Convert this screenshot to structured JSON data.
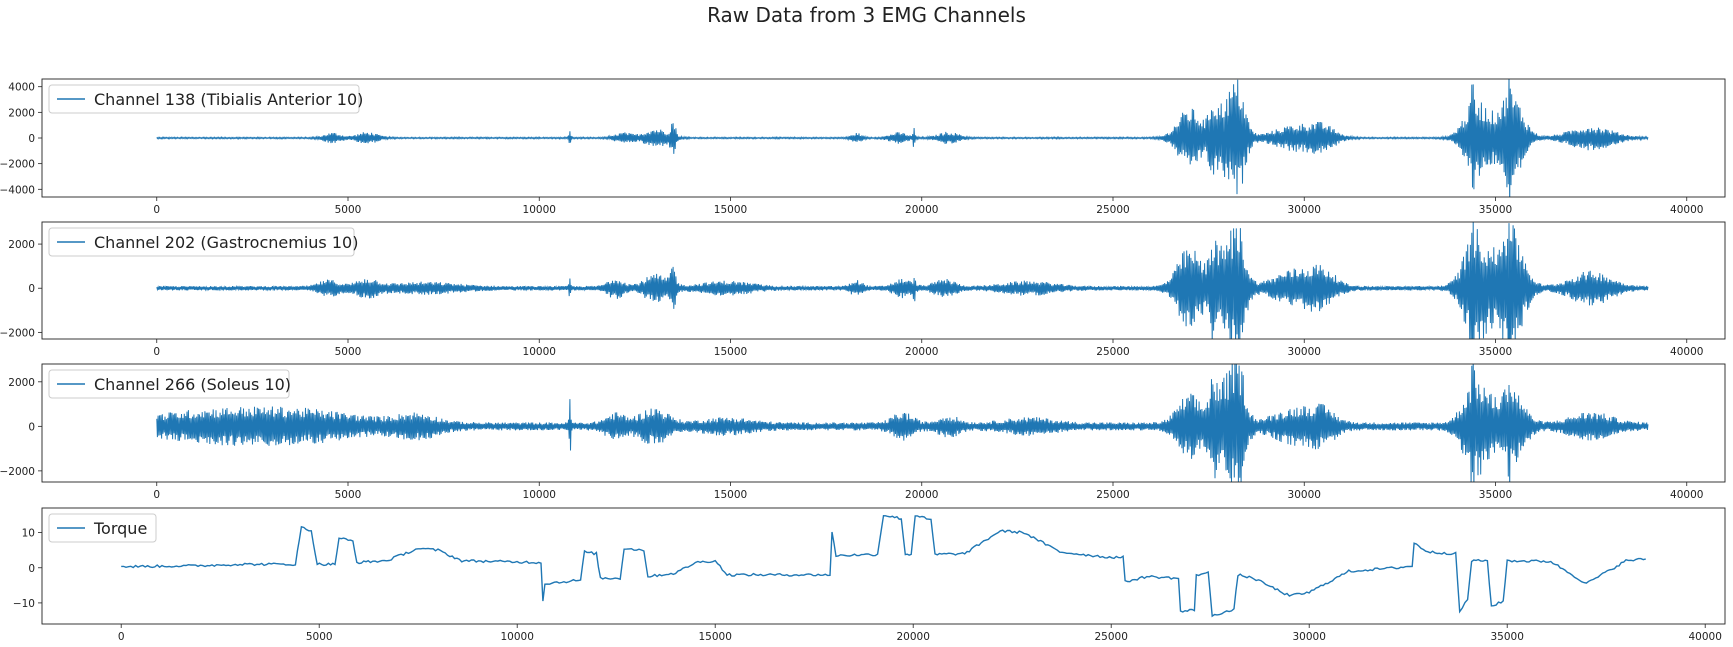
{
  "figure": {
    "title": "Raw Data from 3 EMG Channels"
  },
  "colors": {
    "line": "#1f77b4",
    "axes": "#222222"
  },
  "chart_data": [
    {
      "type": "line",
      "series": [
        {
          "name": "Channel 138 (Tibialis Anterior 10)"
        }
      ],
      "legend": "top-left",
      "xlim": [
        -3000,
        41000
      ],
      "ylim": [
        -4600,
        4600
      ],
      "xticks": [
        0,
        5000,
        10000,
        15000,
        20000,
        25000,
        30000,
        35000,
        40000
      ],
      "yticks": [
        -4000,
        -2000,
        0,
        2000,
        4000
      ],
      "n_samples": 39000,
      "baseline": 60,
      "bursts": [
        [
          4600,
          200,
          380
        ],
        [
          5500,
          250,
          420
        ],
        [
          10800,
          25,
          500
        ],
        [
          12200,
          200,
          380
        ],
        [
          13050,
          300,
          700
        ],
        [
          13500,
          60,
          1200
        ],
        [
          18300,
          120,
          350
        ],
        [
          19400,
          220,
          400
        ],
        [
          19800,
          20,
          900
        ],
        [
          20700,
          250,
          450
        ],
        [
          27000,
          300,
          2300
        ],
        [
          27600,
          80,
          1600
        ],
        [
          28000,
          300,
          3200
        ],
        [
          28300,
          150,
          2500
        ],
        [
          29800,
          550,
          1000
        ],
        [
          30500,
          300,
          700
        ],
        [
          34500,
          300,
          3000
        ],
        [
          34400,
          20,
          4200
        ],
        [
          35400,
          300,
          3500
        ],
        [
          35350,
          25,
          4100
        ],
        [
          37500,
          550,
          900
        ]
      ]
    },
    {
      "type": "line",
      "series": [
        {
          "name": "Channel 202 (Gastrocnemius 10)"
        }
      ],
      "legend": "top-left",
      "xlim": [
        -3000,
        41000
      ],
      "ylim": [
        -2300,
        3000
      ],
      "xticks": [
        0,
        5000,
        10000,
        15000,
        20000,
        25000,
        30000,
        35000,
        40000
      ],
      "yticks": [
        -2000,
        0,
        2000
      ],
      "n_samples": 39000,
      "baseline": 100,
      "bursts": [
        [
          4500,
          250,
          300
        ],
        [
          5500,
          280,
          350
        ],
        [
          7000,
          800,
          200
        ],
        [
          10800,
          20,
          500
        ],
        [
          12000,
          200,
          400
        ],
        [
          13050,
          300,
          550
        ],
        [
          13500,
          60,
          900
        ],
        [
          14900,
          600,
          250
        ],
        [
          18300,
          150,
          280
        ],
        [
          19500,
          220,
          350
        ],
        [
          19800,
          20,
          750
        ],
        [
          20600,
          250,
          350
        ],
        [
          22800,
          600,
          250
        ],
        [
          27000,
          300,
          1800
        ],
        [
          27600,
          80,
          1400
        ],
        [
          28000,
          300,
          2100
        ],
        [
          28300,
          150,
          1600
        ],
        [
          29800,
          550,
          800
        ],
        [
          30500,
          300,
          600
        ],
        [
          34500,
          300,
          2600
        ],
        [
          34400,
          25,
          2500
        ],
        [
          35400,
          300,
          2800
        ],
        [
          35350,
          25,
          2900
        ],
        [
          37500,
          500,
          700
        ]
      ]
    },
    {
      "type": "line",
      "series": [
        {
          "name": "Channel 266 (Soleus 10)"
        }
      ],
      "legend": "top-left",
      "xlim": [
        -3000,
        41000
      ],
      "ylim": [
        -2500,
        2800
      ],
      "xticks": [
        0,
        5000,
        10000,
        15000,
        20000,
        25000,
        30000,
        35000,
        40000
      ],
      "yticks": [
        -2000,
        0,
        2000
      ],
      "n_samples": 39000,
      "baseline": 180,
      "bursts": [
        [
          1200,
          1500,
          500
        ],
        [
          3800,
          1500,
          550
        ],
        [
          6800,
          500,
          400
        ],
        [
          10800,
          20,
          1400
        ],
        [
          12000,
          250,
          450
        ],
        [
          13000,
          350,
          700
        ],
        [
          14900,
          600,
          250
        ],
        [
          19500,
          250,
          500
        ],
        [
          20700,
          250,
          350
        ],
        [
          22800,
          600,
          250
        ],
        [
          27000,
          300,
          1300
        ],
        [
          27600,
          80,
          1300
        ],
        [
          28000,
          300,
          2100
        ],
        [
          28300,
          150,
          1700
        ],
        [
          29800,
          550,
          700
        ],
        [
          30500,
          300,
          500
        ],
        [
          34500,
          300,
          2100
        ],
        [
          34400,
          25,
          2300
        ],
        [
          35400,
          300,
          1700
        ],
        [
          35350,
          25,
          1300
        ],
        [
          37500,
          500,
          500
        ]
      ]
    },
    {
      "type": "line",
      "series": [
        {
          "name": "Torque"
        }
      ],
      "legend": "top-left",
      "xlim": [
        -2000,
        40500
      ],
      "ylim": [
        -16,
        17
      ],
      "xticks": [
        0,
        5000,
        10000,
        15000,
        20000,
        25000,
        30000,
        35000,
        40000
      ],
      "yticks": [
        -10,
        0,
        10
      ],
      "points": [
        [
          0,
          0.3
        ],
        [
          2000,
          0.6
        ],
        [
          3000,
          1
        ],
        [
          4400,
          1
        ],
        [
          4550,
          11.5
        ],
        [
          4800,
          10.5
        ],
        [
          4950,
          1
        ],
        [
          5400,
          1
        ],
        [
          5500,
          8.5
        ],
        [
          5850,
          7.5
        ],
        [
          5950,
          1.5
        ],
        [
          6700,
          2
        ],
        [
          7500,
          5.5
        ],
        [
          8000,
          5
        ],
        [
          8600,
          2
        ],
        [
          10600,
          1.5
        ],
        [
          10650,
          -9.5
        ],
        [
          10700,
          -4.5
        ],
        [
          11600,
          -3.5
        ],
        [
          11700,
          4.5
        ],
        [
          12000,
          4
        ],
        [
          12100,
          -3
        ],
        [
          12600,
          -3
        ],
        [
          12700,
          5.5
        ],
        [
          13200,
          5
        ],
        [
          13300,
          -2.5
        ],
        [
          14000,
          -1.5
        ],
        [
          14500,
          1.5
        ],
        [
          15000,
          2
        ],
        [
          15300,
          -2
        ],
        [
          17900,
          -2
        ],
        [
          17950,
          10
        ],
        [
          18050,
          3.5
        ],
        [
          19100,
          3.8
        ],
        [
          19250,
          15
        ],
        [
          19700,
          14
        ],
        [
          19800,
          3.8
        ],
        [
          19950,
          3.8
        ],
        [
          20050,
          15
        ],
        [
          20450,
          13.5
        ],
        [
          20550,
          3.8
        ],
        [
          21300,
          4
        ],
        [
          22200,
          10.5
        ],
        [
          22800,
          10
        ],
        [
          23700,
          4.5
        ],
        [
          24900,
          3
        ],
        [
          25300,
          3
        ],
        [
          25350,
          -4
        ],
        [
          25900,
          -2.5
        ],
        [
          26700,
          -3
        ],
        [
          26750,
          -12.5
        ],
        [
          27100,
          -12
        ],
        [
          27150,
          -2
        ],
        [
          27450,
          -1.5
        ],
        [
          27550,
          -13.5
        ],
        [
          28100,
          -12
        ],
        [
          28200,
          -2
        ],
        [
          28600,
          -3
        ],
        [
          29500,
          -8
        ],
        [
          30000,
          -7
        ],
        [
          31000,
          -1
        ],
        [
          32200,
          0
        ],
        [
          32600,
          0.5
        ],
        [
          32650,
          7
        ],
        [
          33000,
          4.5
        ],
        [
          33700,
          4
        ],
        [
          33800,
          -12.5
        ],
        [
          34000,
          -9
        ],
        [
          34100,
          2
        ],
        [
          34500,
          2
        ],
        [
          34600,
          -11
        ],
        [
          34900,
          -9.5
        ],
        [
          35000,
          2
        ],
        [
          36100,
          1.8
        ],
        [
          37000,
          -4.5
        ],
        [
          38000,
          2
        ],
        [
          38500,
          2.5
        ]
      ]
    }
  ]
}
